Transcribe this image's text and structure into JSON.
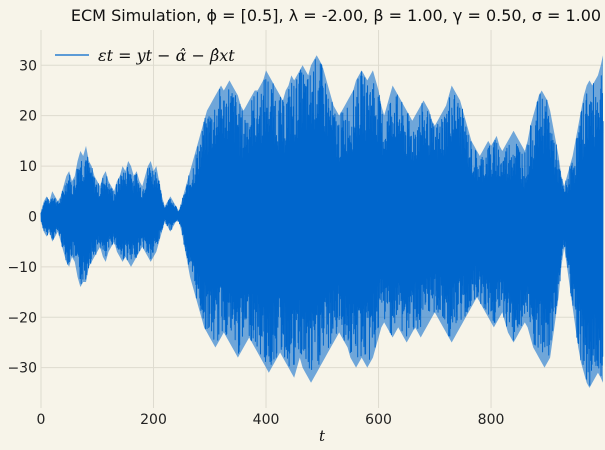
{
  "chart_data": {
    "type": "line",
    "title": "ECM Simulation, ϕ = [0.5], λ = -2.00, β = 1.00, γ = 0.50, σ = 1.00",
    "xlabel": "t",
    "ylabel": "",
    "xlim": [
      0,
      999
    ],
    "ylim": [
      -38,
      37
    ],
    "xticks": [
      0,
      200,
      400,
      600,
      800
    ],
    "yticks": [
      -30,
      -20,
      -10,
      0,
      10,
      20,
      30
    ],
    "grid": true,
    "legend_position": "top-left",
    "series": [
      {
        "name": "εt = yt − α̂ − β̂xt",
        "color": "#0066cc",
        "envelope_x": [
          0,
          5,
          10,
          15,
          20,
          25,
          30,
          35,
          40,
          45,
          50,
          55,
          60,
          65,
          70,
          75,
          80,
          85,
          90,
          95,
          100,
          105,
          110,
          115,
          120,
          125,
          130,
          135,
          140,
          145,
          150,
          155,
          160,
          165,
          170,
          175,
          180,
          185,
          190,
          195,
          200,
          205,
          210,
          215,
          220,
          225,
          230,
          235,
          240,
          245,
          250,
          255,
          260,
          265,
          270,
          275,
          280,
          285,
          290,
          295,
          300,
          305,
          310,
          315,
          320,
          325,
          330,
          335,
          340,
          345,
          350,
          355,
          360,
          365,
          370,
          375,
          380,
          385,
          390,
          395,
          400,
          405,
          410,
          415,
          420,
          425,
          430,
          435,
          440,
          445,
          450,
          455,
          460,
          465,
          470,
          475,
          480,
          485,
          490,
          495,
          500,
          505,
          510,
          515,
          520,
          525,
          530,
          535,
          540,
          545,
          550,
          555,
          560,
          565,
          570,
          575,
          580,
          585,
          590,
          595,
          600,
          605,
          610,
          615,
          620,
          625,
          630,
          635,
          640,
          645,
          650,
          655,
          660,
          665,
          670,
          675,
          680,
          685,
          690,
          695,
          700,
          705,
          710,
          715,
          720,
          725,
          730,
          735,
          740,
          745,
          750,
          755,
          760,
          765,
          770,
          775,
          780,
          785,
          790,
          795,
          800,
          805,
          810,
          815,
          820,
          825,
          830,
          835,
          840,
          845,
          850,
          855,
          860,
          865,
          870,
          875,
          880,
          885,
          890,
          895,
          900,
          905,
          910,
          915,
          920,
          925,
          930,
          935,
          940,
          945,
          950,
          955,
          960,
          965,
          970,
          975,
          980,
          985,
          990,
          995,
          999
        ],
        "upper": [
          1,
          3,
          4,
          3,
          5,
          4,
          3,
          4,
          6,
          8,
          9,
          7,
          8,
          11,
          13,
          12,
          14,
          11,
          10,
          8,
          7,
          6,
          8,
          9,
          7,
          6,
          5,
          7,
          8,
          10,
          9,
          11,
          10,
          8,
          9,
          7,
          6,
          8,
          10,
          11,
          9,
          10,
          7,
          4,
          2,
          3,
          4,
          3,
          2,
          1,
          3,
          5,
          7,
          9,
          11,
          13,
          15,
          17,
          19,
          21,
          22,
          23,
          24,
          25,
          26,
          25,
          26,
          27,
          26,
          25,
          24,
          22,
          21,
          22,
          23,
          24,
          25,
          25,
          26,
          27,
          29,
          28,
          27,
          26,
          25,
          24,
          23,
          25,
          26,
          28,
          27,
          28,
          29,
          30,
          29,
          28,
          30,
          31,
          32,
          31,
          30,
          28,
          26,
          24,
          22,
          21,
          20,
          21,
          22,
          23,
          24,
          25,
          27,
          28,
          29,
          28,
          27,
          28,
          29,
          27,
          25,
          22,
          20,
          22,
          24,
          26,
          25,
          24,
          23,
          22,
          21,
          20,
          19,
          20,
          21,
          22,
          23,
          22,
          21,
          19,
          18,
          19,
          20,
          21,
          22,
          24,
          26,
          25,
          24,
          23,
          21,
          19,
          17,
          15,
          14,
          13,
          12,
          13,
          14,
          15,
          14,
          15,
          16,
          14,
          13,
          14,
          15,
          16,
          17,
          16,
          15,
          14,
          13,
          15,
          18,
          20,
          22,
          24,
          25,
          24,
          23,
          21,
          18,
          15,
          12,
          8,
          6,
          8,
          10,
          12,
          15,
          18,
          21,
          24,
          26,
          27,
          26,
          27,
          28,
          30,
          32
        ],
        "lower": [
          -1,
          -3,
          -4,
          -3,
          -5,
          -4,
          -3,
          -5,
          -7,
          -9,
          -10,
          -8,
          -9,
          -12,
          -14,
          -13,
          -13,
          -10,
          -9,
          -8,
          -7,
          -6,
          -8,
          -9,
          -7,
          -6,
          -5,
          -7,
          -8,
          -9,
          -8,
          -9,
          -10,
          -9,
          -8,
          -7,
          -6,
          -7,
          -8,
          -9,
          -8,
          -7,
          -5,
          -3,
          -1,
          -2,
          -3,
          -2,
          -1,
          -1,
          -3,
          -6,
          -9,
          -12,
          -14,
          -16,
          -18,
          -20,
          -22,
          -23,
          -24,
          -25,
          -26,
          -25,
          -24,
          -23,
          -24,
          -25,
          -26,
          -27,
          -28,
          -27,
          -26,
          -25,
          -24,
          -25,
          -26,
          -27,
          -28,
          -29,
          -30,
          -31,
          -30,
          -29,
          -28,
          -27,
          -28,
          -29,
          -30,
          -31,
          -32,
          -30,
          -28,
          -30,
          -31,
          -32,
          -33,
          -32,
          -31,
          -30,
          -29,
          -28,
          -27,
          -26,
          -25,
          -24,
          -23,
          -24,
          -25,
          -26,
          -28,
          -29,
          -30,
          -29,
          -28,
          -29,
          -30,
          -29,
          -28,
          -26,
          -24,
          -22,
          -21,
          -22,
          -23,
          -24,
          -23,
          -22,
          -23,
          -24,
          -25,
          -24,
          -23,
          -22,
          -23,
          -24,
          -23,
          -22,
          -21,
          -20,
          -19,
          -20,
          -21,
          -22,
          -23,
          -24,
          -25,
          -24,
          -23,
          -22,
          -21,
          -20,
          -19,
          -18,
          -17,
          -16,
          -17,
          -18,
          -19,
          -20,
          -21,
          -22,
          -21,
          -20,
          -19,
          -21,
          -23,
          -24,
          -25,
          -24,
          -23,
          -22,
          -21,
          -22,
          -24,
          -26,
          -27,
          -28,
          -29,
          -30,
          -29,
          -28,
          -24,
          -20,
          -16,
          -10,
          -6,
          -10,
          -14,
          -18,
          -22,
          -26,
          -29,
          -31,
          -33,
          -34,
          -33,
          -32,
          -31,
          -32,
          -33
        ]
      }
    ]
  }
}
